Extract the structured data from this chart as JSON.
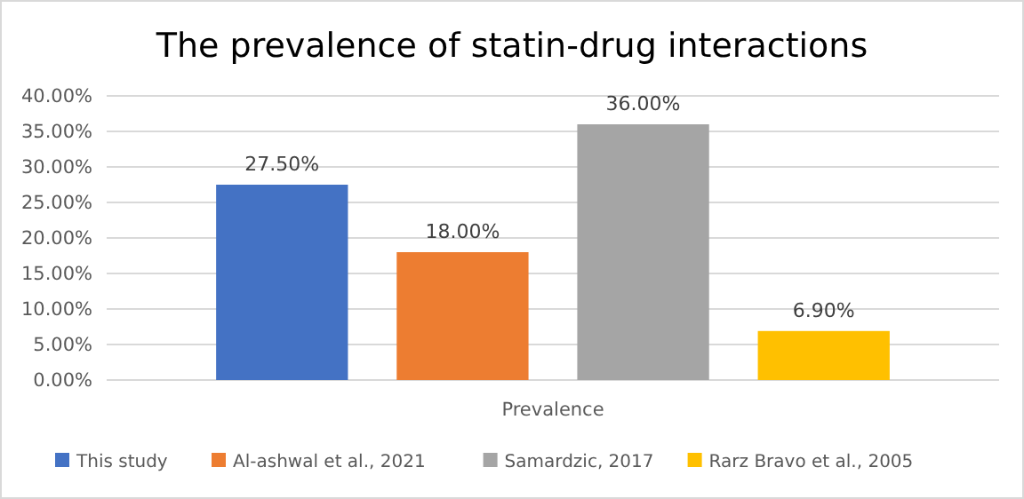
{
  "chart_data": {
    "type": "bar",
    "title": "The prevalence of statin-drug interactions",
    "categories": [
      "Prevalence"
    ],
    "series": [
      {
        "name": "This study",
        "color": "#4472c4",
        "values": [
          27.5
        ],
        "value_labels": [
          "27.50%"
        ]
      },
      {
        "name": "Al-ashwal et al., 2021",
        "color": "#ed7d31",
        "values": [
          18
        ],
        "value_labels": [
          "18.00%"
        ]
      },
      {
        "name": "Samardzic, 2017",
        "color": "#a5a5a5",
        "values": [
          36
        ],
        "value_labels": [
          "36.00%"
        ]
      },
      {
        "name": "Rarz Bravo et al., 2005",
        "color": "#ffc000",
        "values": [
          6.9
        ],
        "value_labels": [
          "6.90%"
        ]
      }
    ],
    "ylim": [
      0,
      40
    ],
    "yticks": [
      {
        "value": 0,
        "label": "0.00%"
      },
      {
        "value": 5,
        "label": "5.00%"
      },
      {
        "value": 10,
        "label": "10.00%"
      },
      {
        "value": 15,
        "label": "15.00%"
      },
      {
        "value": 20,
        "label": "20.00%"
      },
      {
        "value": 25,
        "label": "25.00%"
      },
      {
        "value": 30,
        "label": "30.00%"
      },
      {
        "value": 35,
        "label": "35.00%"
      },
      {
        "value": 40,
        "label": "40.00%"
      }
    ],
    "grid": "y",
    "legend": "bottom"
  }
}
